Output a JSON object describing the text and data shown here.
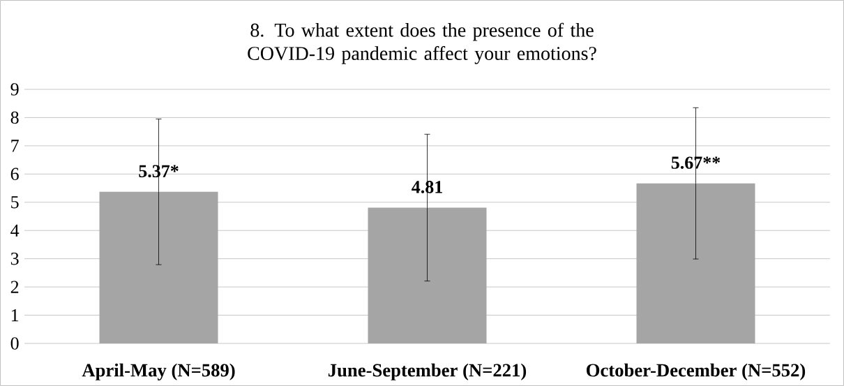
{
  "chart_data": {
    "type": "bar",
    "title": "8. To what extent does the presence of the COVID-19 pandemic affect your emotions?",
    "categories": [
      "April-May (N=589)",
      "June-September (N=221)",
      "October-December (N=552)"
    ],
    "values": [
      5.37,
      4.81,
      5.67
    ],
    "errors": [
      2.58,
      2.6,
      2.68
    ],
    "value_labels": [
      "5.37*",
      "4.81",
      "5.67**"
    ],
    "color": "#a5a5a5",
    "ylim": [
      0,
      9
    ],
    "yticks": [
      0,
      1,
      2,
      3,
      4,
      5,
      6,
      7,
      8,
      9
    ],
    "grid": "y"
  }
}
